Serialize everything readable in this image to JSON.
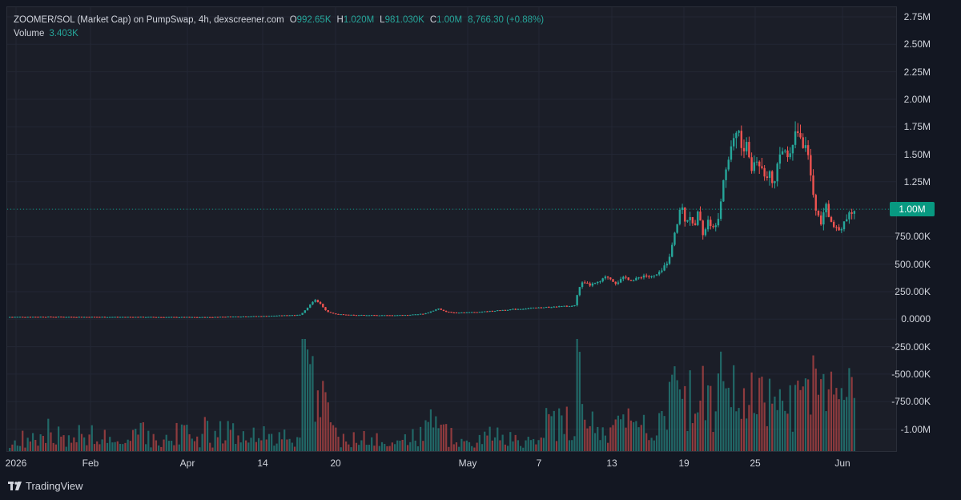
{
  "legend": {
    "symbol": "ZOOMER/SOL (Market Cap) on PumpSwap, 4h, dexscreener.com",
    "o_label": "O",
    "o_value": "992.65K",
    "h_label": "H",
    "h_value": "1.020M",
    "l_label": "L",
    "l_value": "981.030K",
    "c_label": "C",
    "c_value": "1.00M",
    "change": "8,766.30 (+0.88%)",
    "volume_label": "Volume",
    "volume_value": "3.403K"
  },
  "current_price_label": "1.00M",
  "brand": {
    "name": "TradingView",
    "icon": "tradingview-logo-icon"
  },
  "colors": {
    "up": "#26a69a",
    "down": "#ef5350",
    "background": "#131722",
    "last_price": "#089981"
  },
  "chart_data": {
    "type": "candlestick",
    "y_tick_labels": [
      "2.75M",
      "2.50M",
      "2.25M",
      "2.00M",
      "1.75M",
      "1.50M",
      "1.25M",
      "1.00M",
      "750.00K",
      "500.00K",
      "250.00K",
      "0.0000",
      "-250.00K",
      "-500.00K",
      "-750.00K",
      "-1.00M"
    ],
    "x_tick_labels": [
      "2026",
      "Feb",
      "Apr",
      "14",
      "20",
      "May",
      "7",
      "13",
      "19",
      "25",
      "Jun"
    ],
    "last_price": 1000000,
    "series": [
      {
        "name": "Market Cap",
        "points": [
          [
            0,
            0,
            20000
          ],
          [
            0.04,
            0,
            21000
          ],
          [
            0.09,
            0,
            20000
          ],
          [
            0.13,
            0,
            20000
          ],
          [
            0.18,
            0,
            19000
          ],
          [
            0.225,
            0,
            18000
          ],
          [
            0.24,
            0,
            21000
          ],
          [
            0.265,
            0,
            24000
          ],
          [
            0.29,
            0,
            28000
          ],
          [
            0.31,
            0,
            34000
          ],
          [
            0.33,
            0,
            40000
          ],
          [
            0.338,
            0,
            110000
          ],
          [
            0.343,
            0,
            160000
          ],
          [
            0.347,
            0,
            180000
          ],
          [
            0.352,
            0,
            140000
          ],
          [
            0.357,
            0,
            90000
          ],
          [
            0.362,
            0,
            60000
          ],
          [
            0.37,
            0,
            45000
          ],
          [
            0.39,
            0,
            38000
          ],
          [
            0.41,
            0,
            36000
          ],
          [
            0.43,
            0,
            35000
          ],
          [
            0.45,
            0,
            38000
          ],
          [
            0.47,
            0,
            50000
          ],
          [
            0.485,
            0,
            95000
          ],
          [
            0.49,
            0,
            75000
          ],
          [
            0.5,
            0,
            60000
          ],
          [
            0.52,
            0,
            62000
          ],
          [
            0.54,
            0,
            70000
          ],
          [
            0.56,
            0,
            85000
          ],
          [
            0.58,
            0,
            95000
          ],
          [
            0.6,
            0,
            105000
          ],
          [
            0.62,
            0,
            115000
          ],
          [
            0.638,
            0,
            120000
          ],
          [
            0.645,
            0,
            330000
          ],
          [
            0.655,
            0,
            310000
          ],
          [
            0.665,
            0,
            330000
          ],
          [
            0.675,
            0,
            390000
          ],
          [
            0.685,
            0,
            330000
          ],
          [
            0.695,
            0,
            380000
          ],
          [
            0.705,
            0,
            350000
          ],
          [
            0.715,
            0,
            400000
          ],
          [
            0.725,
            0,
            380000
          ],
          [
            0.735,
            0,
            420000
          ],
          [
            0.745,
            0,
            560000
          ],
          [
            0.752,
            0,
            800000
          ],
          [
            0.758,
            0,
            1050000
          ],
          [
            0.763,
            0,
            900000
          ],
          [
            0.768,
            0,
            950000
          ],
          [
            0.773,
            0,
            800000
          ],
          [
            0.778,
            0,
            1000000
          ],
          [
            0.783,
            0,
            760000
          ],
          [
            0.788,
            0,
            900000
          ],
          [
            0.793,
            0,
            800000
          ],
          [
            0.8,
            0,
            950000
          ],
          [
            0.806,
            0,
            1300000
          ],
          [
            0.812,
            0,
            1500000
          ],
          [
            0.817,
            0,
            1650000
          ],
          [
            0.822,
            0,
            1750000
          ],
          [
            0.827,
            0,
            1500000
          ],
          [
            0.832,
            0,
            1600000
          ],
          [
            0.837,
            0,
            1350000
          ],
          [
            0.842,
            0,
            1450000
          ],
          [
            0.848,
            0,
            1400000
          ],
          [
            0.853,
            0,
            1300000
          ],
          [
            0.858,
            0,
            1380000
          ],
          [
            0.863,
            0,
            1200000
          ],
          [
            0.868,
            0,
            1450000
          ],
          [
            0.873,
            0,
            1550000
          ],
          [
            0.878,
            0,
            1500000
          ],
          [
            0.884,
            0,
            1650000
          ],
          [
            0.89,
            0,
            1700000
          ],
          [
            0.895,
            0,
            1600000
          ],
          [
            0.9,
            0,
            1500000
          ],
          [
            0.905,
            0,
            1250000
          ],
          [
            0.91,
            0,
            1000000
          ],
          [
            0.915,
            0,
            850000
          ],
          [
            0.92,
            0,
            1050000
          ],
          [
            0.925,
            0,
            900000
          ],
          [
            0.93,
            0,
            870000
          ],
          [
            0.935,
            0,
            800000
          ],
          [
            0.94,
            0,
            870000
          ],
          [
            0.945,
            0,
            920000
          ],
          [
            0.95,
            0,
            960000
          ],
          [
            0.953,
            0,
            1000000
          ]
        ]
      }
    ]
  }
}
